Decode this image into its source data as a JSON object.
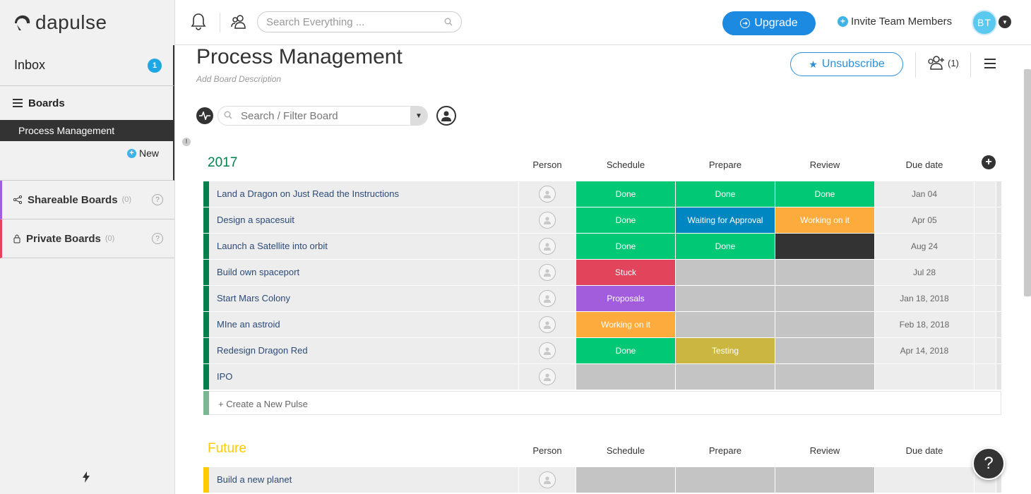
{
  "app": {
    "logo_text": "dapulse"
  },
  "sidebar": {
    "inbox_label": "Inbox",
    "inbox_count": "1",
    "boards_label": "Boards",
    "active_board": "Process Management",
    "new_label": "New",
    "shareable_label": "Shareable Boards",
    "shareable_count": "(0)",
    "private_label": "Private Boards",
    "private_count": "(0)",
    "help_mark": "?"
  },
  "topbar": {
    "search_placeholder": "Search Everything ...",
    "upgrade_label": "Upgrade",
    "invite_label": "Invite Team Members",
    "avatar_initials": "BT"
  },
  "board": {
    "title": "Process Management",
    "description": "Add Board Description",
    "unsubscribe_label": "Unsubscribe",
    "subscribers_count": "(1)",
    "filter_placeholder": "Search / Filter Board",
    "create_pulse": "+ Create a New Pulse",
    "columns": [
      "Person",
      "Schedule",
      "Prepare",
      "Review",
      "Due date"
    ]
  },
  "groups": [
    {
      "name": "2017",
      "color": "#037f4c",
      "rows": [
        {
          "name": "Land a Dragon on Just Read the Instructions",
          "schedule": "Done",
          "prepare": "Done",
          "review": "Done",
          "due": "Jan 04"
        },
        {
          "name": "Design a spacesuit",
          "schedule": "Done",
          "prepare": "Waiting for Approval",
          "review": "Working on it",
          "due": "Apr 05"
        },
        {
          "name": "Launch a Satellite into orbit",
          "schedule": "Done",
          "prepare": "Done",
          "review": "",
          "due": "Aug 24"
        },
        {
          "name": "Build own spaceport",
          "schedule": "Stuck",
          "prepare": "",
          "review": "",
          "due": "Jul 28"
        },
        {
          "name": "Start Mars Colony",
          "schedule": "Proposals",
          "prepare": "",
          "review": "",
          "due": "Jan 18, 2018"
        },
        {
          "name": "MIne an astroid",
          "schedule": "Working on it",
          "prepare": "",
          "review": "",
          "due": "Feb 18, 2018"
        },
        {
          "name": "Redesign Dragon Red",
          "schedule": "Done",
          "prepare": "Testing",
          "review": "",
          "due": "Apr 14, 2018"
        },
        {
          "name": "IPO",
          "schedule": "",
          "prepare": "",
          "review": "",
          "due": ""
        }
      ]
    },
    {
      "name": "Future",
      "color": "#ffcb00",
      "rows": [
        {
          "name": "Build a new planet",
          "schedule": "",
          "prepare": "",
          "review": "",
          "due": ""
        }
      ]
    }
  ],
  "status_colors": {
    "Done": "#00c875",
    "Waiting for Approval": "#0086c0",
    "Working on it": "#fdab3d",
    "Stuck": "#e2445c",
    "Proposals": "#a25ddc",
    "Testing": "#cab641",
    "dark": "#333333",
    "empty": "#c4c4c4"
  },
  "help_fab": "?"
}
